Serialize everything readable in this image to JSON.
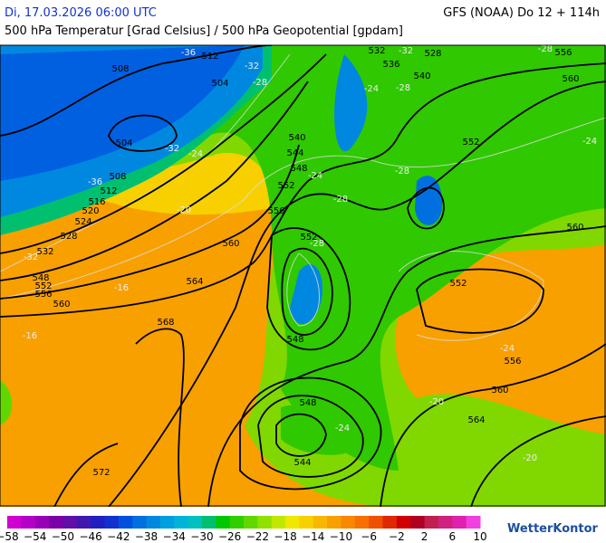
{
  "header": {
    "datetime": "Di, 17.03.2026 06:00 UTC",
    "model": "GFS (NOAA) Do 12 + 114h",
    "title": "500 hPa Temperatur [Grad Celsius] / 500 hPa Geopotential [gpdam]"
  },
  "map": {
    "geopotential_labels": [
      "508",
      "512",
      "504",
      "504",
      "508",
      "512",
      "516",
      "520",
      "524",
      "528",
      "532",
      "548",
      "552",
      "556",
      "560",
      "564",
      "568",
      "572",
      "532",
      "536",
      "540",
      "528",
      "556",
      "560",
      "540",
      "544",
      "548",
      "552",
      "556",
      "552",
      "560",
      "548",
      "552",
      "552",
      "556",
      "560",
      "564",
      "548",
      "544",
      "560"
    ],
    "temperature_labels": [
      "-36",
      "-32",
      "-28",
      "-32",
      "-24",
      "-36",
      "-32",
      "-28",
      "-24",
      "-28",
      "-28",
      "-24",
      "-32",
      "-20",
      "-16",
      "-16",
      "-28",
      "-24",
      "-24",
      "-20",
      "-28",
      "-24",
      "-20"
    ]
  },
  "colorbar": {
    "labels": [
      "−58",
      "−54",
      "−50",
      "−46",
      "−42",
      "−38",
      "−34",
      "−30",
      "−26",
      "−22",
      "−18",
      "−14",
      "−10",
      "−6",
      "−2",
      "2",
      "6",
      "10"
    ],
    "colors": [
      "#d000d0",
      "#b400c8",
      "#9800b8",
      "#7c00a8",
      "#6010a8",
      "#4018b0",
      "#2020c0",
      "#1030d0",
      "#0050e0",
      "#0070e0",
      "#0088e0",
      "#00a0e0",
      "#00b4d8",
      "#00c0c0",
      "#00c070",
      "#00c800",
      "#30d000",
      "#60d800",
      "#90e000",
      "#c0e800",
      "#f0e800",
      "#f8d000",
      "#f8b800",
      "#f8a000",
      "#f88800",
      "#f87000",
      "#f05000",
      "#e02800",
      "#d00000",
      "#b00020",
      "#c02050",
      "#d02080",
      "#e020b0",
      "#f040e0"
    ]
  },
  "brand": "WetterKontor"
}
